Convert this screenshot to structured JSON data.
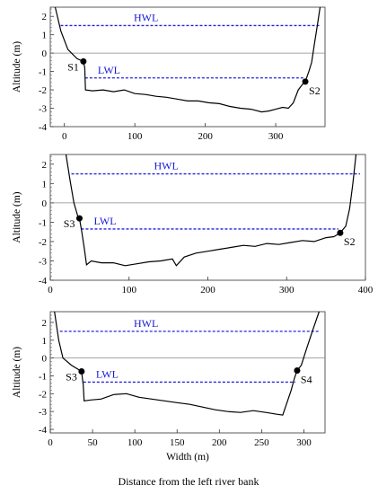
{
  "caption": "Distance from the left river bank",
  "chart_data": [
    {
      "type": "line",
      "xlabel": "",
      "ylabel": "Altitude (m)",
      "xlim": [
        -20,
        370
      ],
      "ylim": [
        -4,
        2.5
      ],
      "xticks": [
        0,
        100,
        200,
        300
      ],
      "yticks": [
        2,
        1,
        0,
        -1,
        -2,
        -3,
        -4
      ],
      "hwl": {
        "label": "HWL",
        "y": 1.5
      },
      "lwl": {
        "label": "LWL",
        "y": -1.35
      },
      "points": [
        {
          "label": "S1",
          "x": 27,
          "y": -0.45
        },
        {
          "label": "S2",
          "x": 342,
          "y": -1.55
        }
      ],
      "profile": [
        [
          -13,
          2.5
        ],
        [
          -5,
          1.2
        ],
        [
          5,
          0.2
        ],
        [
          18,
          -0.3
        ],
        [
          27,
          -0.45
        ],
        [
          29,
          -0.8
        ],
        [
          30,
          -2.0
        ],
        [
          40,
          -2.05
        ],
        [
          55,
          -2.0
        ],
        [
          70,
          -2.1
        ],
        [
          85,
          -2.0
        ],
        [
          100,
          -2.2
        ],
        [
          115,
          -2.25
        ],
        [
          130,
          -2.35
        ],
        [
          145,
          -2.4
        ],
        [
          160,
          -2.5
        ],
        [
          175,
          -2.6
        ],
        [
          190,
          -2.6
        ],
        [
          205,
          -2.7
        ],
        [
          220,
          -2.75
        ],
        [
          235,
          -2.9
        ],
        [
          250,
          -3.0
        ],
        [
          265,
          -3.05
        ],
        [
          280,
          -3.2
        ],
        [
          290,
          -3.15
        ],
        [
          300,
          -3.05
        ],
        [
          310,
          -2.95
        ],
        [
          318,
          -3.0
        ],
        [
          325,
          -2.7
        ],
        [
          332,
          -2.0
        ],
        [
          338,
          -1.7
        ],
        [
          342,
          -1.55
        ],
        [
          347,
          -1.0
        ],
        [
          351,
          -0.5
        ],
        [
          355,
          0.5
        ],
        [
          359,
          1.5
        ],
        [
          363,
          2.5
        ]
      ]
    },
    {
      "type": "line",
      "xlabel": "",
      "ylabel": "Altitude (m)",
      "xlim": [
        0,
        400
      ],
      "ylim": [
        -4,
        2.5
      ],
      "xticks": [
        0,
        100,
        200,
        300,
        400
      ],
      "yticks": [
        2,
        1,
        0,
        -1,
        -2,
        -3,
        -4
      ],
      "hwl": {
        "label": "HWL",
        "y": 1.5
      },
      "lwl": {
        "label": "LWL",
        "y": -1.35
      },
      "points": [
        {
          "label": "S3",
          "x": 37,
          "y": -0.8
        },
        {
          "label": "S2",
          "x": 368,
          "y": -1.55
        }
      ],
      "profile": [
        [
          20,
          2.5
        ],
        [
          25,
          1.2
        ],
        [
          30,
          0.0
        ],
        [
          35,
          -0.7
        ],
        [
          37,
          -0.8
        ],
        [
          40,
          -1.5
        ],
        [
          43,
          -2.3
        ],
        [
          46,
          -3.2
        ],
        [
          52,
          -3.0
        ],
        [
          65,
          -3.1
        ],
        [
          80,
          -3.1
        ],
        [
          95,
          -3.25
        ],
        [
          110,
          -3.15
        ],
        [
          125,
          -3.05
        ],
        [
          140,
          -3.0
        ],
        [
          155,
          -2.9
        ],
        [
          160,
          -3.25
        ],
        [
          170,
          -2.8
        ],
        [
          185,
          -2.6
        ],
        [
          200,
          -2.5
        ],
        [
          215,
          -2.4
        ],
        [
          230,
          -2.3
        ],
        [
          245,
          -2.2
        ],
        [
          260,
          -2.25
        ],
        [
          275,
          -2.1
        ],
        [
          290,
          -2.15
        ],
        [
          305,
          -2.05
        ],
        [
          320,
          -1.95
        ],
        [
          335,
          -2.0
        ],
        [
          350,
          -1.8
        ],
        [
          360,
          -1.75
        ],
        [
          368,
          -1.55
        ],
        [
          375,
          -1.2
        ],
        [
          380,
          -0.3
        ],
        [
          384,
          1.0
        ],
        [
          388,
          2.5
        ]
      ]
    },
    {
      "type": "line",
      "xlabel": "Width (m)",
      "ylabel": "Altitude (m)",
      "xlim": [
        0,
        325
      ],
      "ylim": [
        -4.2,
        2.6
      ],
      "xticks": [
        0,
        50,
        100,
        150,
        200,
        250,
        300
      ],
      "yticks": [
        2,
        1,
        0,
        -1,
        -2,
        -3,
        -4
      ],
      "hwl": {
        "label": "HWL",
        "y": 1.5
      },
      "lwl": {
        "label": "LWL",
        "y": -1.35
      },
      "points": [
        {
          "label": "S3",
          "x": 37,
          "y": -0.75
        },
        {
          "label": "S4",
          "x": 292,
          "y": -0.7
        }
      ],
      "profile": [
        [
          5,
          2.6
        ],
        [
          10,
          1.0
        ],
        [
          15,
          0.0
        ],
        [
          25,
          -0.4
        ],
        [
          37,
          -0.75
        ],
        [
          39,
          -1.5
        ],
        [
          40,
          -2.4
        ],
        [
          48,
          -2.35
        ],
        [
          60,
          -2.3
        ],
        [
          75,
          -2.05
        ],
        [
          90,
          -2.0
        ],
        [
          105,
          -2.2
        ],
        [
          120,
          -2.3
        ],
        [
          135,
          -2.4
        ],
        [
          150,
          -2.5
        ],
        [
          165,
          -2.6
        ],
        [
          180,
          -2.75
        ],
        [
          195,
          -2.9
        ],
        [
          210,
          -3.0
        ],
        [
          225,
          -3.05
        ],
        [
          240,
          -2.95
        ],
        [
          255,
          -3.05
        ],
        [
          268,
          -3.15
        ],
        [
          275,
          -3.2
        ],
        [
          280,
          -2.5
        ],
        [
          285,
          -1.8
        ],
        [
          289,
          -1.1
        ],
        [
          292,
          -0.7
        ],
        [
          297,
          -0.4
        ],
        [
          303,
          0.5
        ],
        [
          310,
          1.5
        ],
        [
          318,
          2.6
        ]
      ]
    }
  ]
}
